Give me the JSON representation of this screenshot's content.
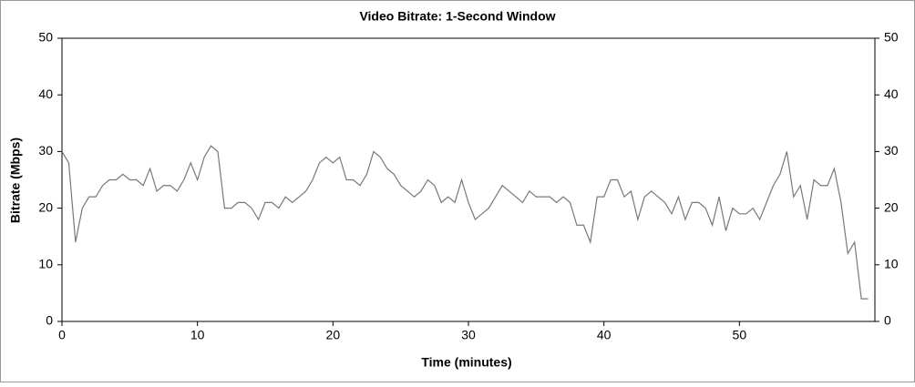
{
  "chart_data": {
    "type": "line",
    "title": "Video Bitrate: 1-Second Window",
    "x_label": "Time (minutes)",
    "y_label": "Bitrate (Mbps)",
    "x": [
      0,
      0.5,
      1,
      1.5,
      2,
      2.5,
      3,
      3.5,
      4,
      4.5,
      5,
      5.5,
      6,
      6.5,
      7,
      7.5,
      8,
      8.5,
      9,
      9.5,
      10,
      10.5,
      11,
      11.5,
      12,
      12.5,
      13,
      13.5,
      14,
      14.5,
      15,
      15.5,
      16,
      16.5,
      17,
      17.5,
      18,
      18.5,
      19,
      19.5,
      20,
      20.5,
      21,
      21.5,
      22,
      22.5,
      23,
      23.5,
      24,
      24.5,
      25,
      25.5,
      26,
      26.5,
      27,
      27.5,
      28,
      28.5,
      29,
      29.5,
      30,
      30.5,
      31,
      31.5,
      32,
      32.5,
      33,
      33.5,
      34,
      34.5,
      35,
      35.5,
      36,
      36.5,
      37,
      37.5,
      38,
      38.5,
      39,
      39.5,
      40,
      40.5,
      41,
      41.5,
      42,
      42.5,
      43,
      43.5,
      44,
      44.5,
      45,
      45.5,
      46,
      46.5,
      47,
      47.5,
      48,
      48.5,
      49,
      49.5,
      50,
      50.5,
      51,
      51.5,
      52,
      52.5,
      53,
      53.5,
      54,
      54.5,
      55,
      55.5,
      56,
      56.5,
      57,
      57.5,
      58,
      58.5,
      59,
      59.5
    ],
    "series": [
      {
        "color": "#787878",
        "values": [
          30,
          28,
          14,
          20,
          22,
          22,
          24,
          25,
          25,
          26,
          25,
          25,
          24,
          27,
          23,
          24,
          24,
          23,
          25,
          28,
          25,
          29,
          31,
          30,
          20,
          20,
          21,
          21,
          20,
          18,
          21,
          21,
          20,
          22,
          21,
          22,
          23,
          25,
          28,
          29,
          28,
          29,
          25,
          25,
          24,
          26,
          30,
          29,
          27,
          26,
          24,
          23,
          22,
          23,
          25,
          24,
          21,
          22,
          21,
          25,
          21,
          18,
          19,
          20,
          22,
          24,
          23,
          22,
          21,
          23,
          22,
          22,
          22,
          21,
          22,
          21,
          17,
          17,
          14,
          22,
          22,
          25,
          25,
          22,
          23,
          18,
          22,
          23,
          22,
          21,
          19,
          22,
          18,
          21,
          21,
          20,
          17,
          22,
          16,
          20,
          19,
          19,
          20,
          18,
          21,
          24,
          26,
          30,
          22,
          24,
          18,
          25,
          24,
          24,
          27,
          21,
          12,
          14,
          4,
          4
        ]
      }
    ],
    "xlim": [
      0,
      60
    ],
    "xticks": [
      0,
      10,
      20,
      30,
      40,
      50
    ],
    "ylim": [
      0,
      50
    ],
    "yticks": [
      0,
      10,
      20,
      30,
      40,
      50
    ],
    "y2lim": [
      0,
      50
    ],
    "y2ticks": [
      0,
      10,
      20,
      30,
      40,
      50
    ]
  }
}
